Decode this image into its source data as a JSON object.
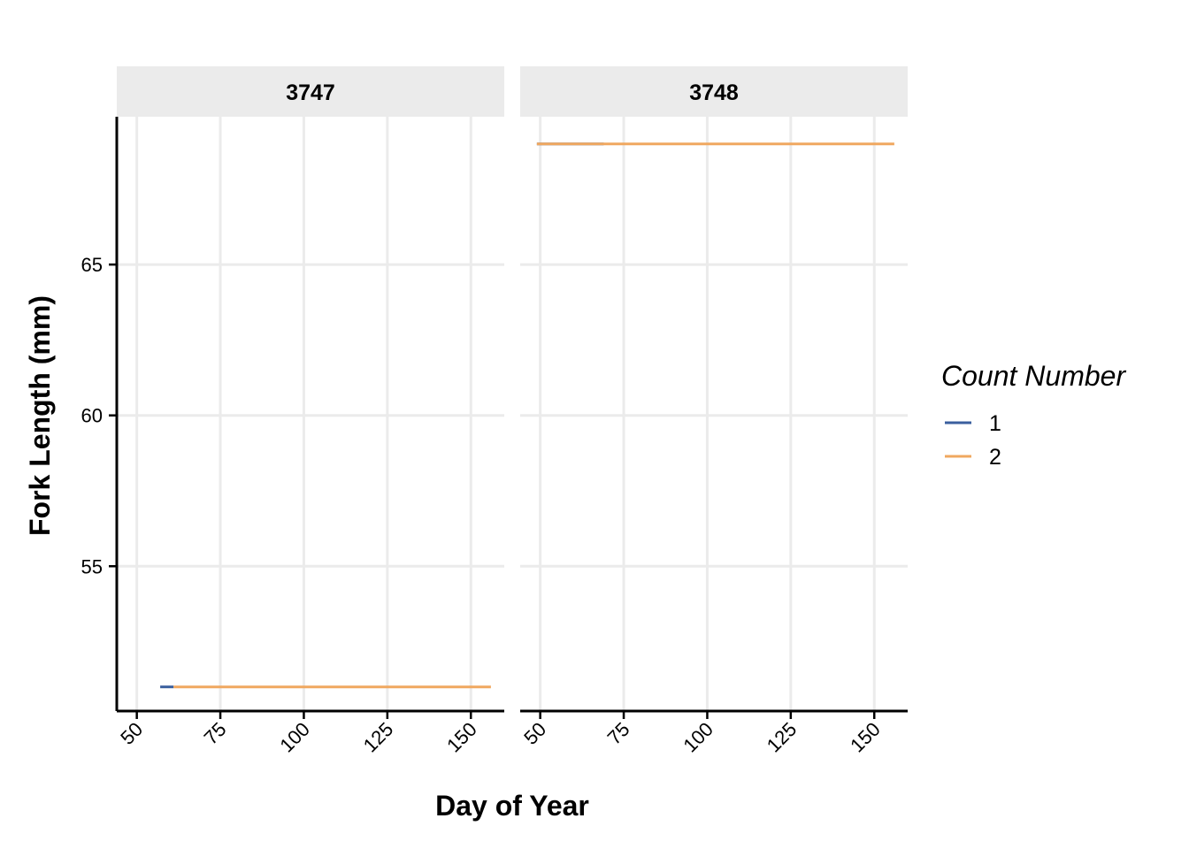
{
  "chart_data": {
    "type": "line",
    "facets": [
      {
        "label": "3747",
        "series": [
          {
            "name": "1",
            "x": [
              57,
              61
            ],
            "y": [
              51,
              51
            ]
          },
          {
            "name": "2",
            "x": [
              61,
              156
            ],
            "y": [
              51,
              51
            ]
          }
        ]
      },
      {
        "label": "3748",
        "series": [
          {
            "name": "1",
            "x": [
              49,
              69
            ],
            "y": [
              69,
              69
            ]
          },
          {
            "name": "2",
            "x": [
              49,
              156
            ],
            "y": [
              69,
              69
            ]
          }
        ]
      }
    ],
    "xlabel": "Day of Year",
    "ylabel": "Fork Length (mm)",
    "xlim": [
      44,
      160
    ],
    "ylim": [
      50.2,
      69.9
    ],
    "xticks": [
      50,
      75,
      100,
      125,
      150
    ],
    "yticks": [
      55,
      60,
      65
    ],
    "grid": true,
    "legend": {
      "title": "Count Number",
      "position": "right",
      "entries": [
        {
          "label": "1",
          "color": "#3a5f9e"
        },
        {
          "label": "2",
          "color": "#f0a860"
        }
      ]
    },
    "colors": {
      "1": "#3a5f9e",
      "2": "#f0a860"
    }
  }
}
